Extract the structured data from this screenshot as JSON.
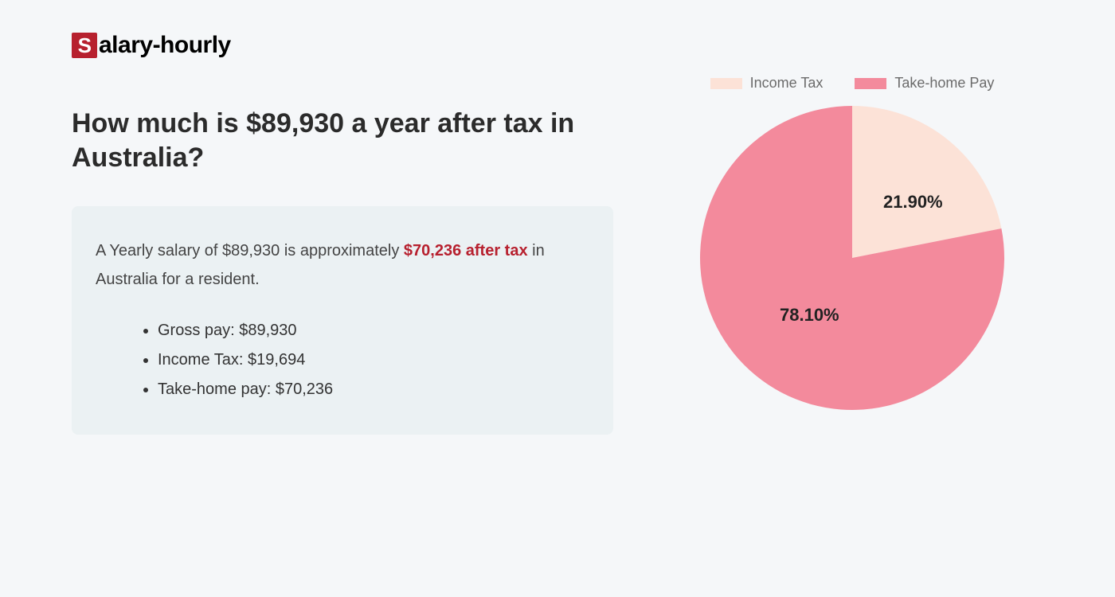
{
  "logo": {
    "badge_letter": "S",
    "rest": "alary-hourly",
    "badge_bg": "#b7202e"
  },
  "heading": "How much is $89,930 a year after tax in Australia?",
  "summary": {
    "prefix": "A Yearly salary of $89,930 is approximately ",
    "highlight": "$70,236 after tax",
    "suffix": " in Australia for a resident.",
    "highlight_color": "#b7202e",
    "box_bg": "#ebf1f3",
    "items": [
      "Gross pay: $89,930",
      "Income Tax: $19,694",
      "Take-home pay: $70,236"
    ]
  },
  "chart": {
    "type": "pie",
    "diameter": 382,
    "background_color": "#f5f7f9",
    "legend_text_color": "#6b6b6b",
    "label_text_color": "#222222",
    "label_fontsize": 22,
    "slices": [
      {
        "label": "Income Tax",
        "value": 21.9,
        "display": "21.90%",
        "color": "#fce2d7"
      },
      {
        "label": "Take-home Pay",
        "value": 78.1,
        "display": "78.10%",
        "color": "#f38a9c"
      }
    ]
  }
}
